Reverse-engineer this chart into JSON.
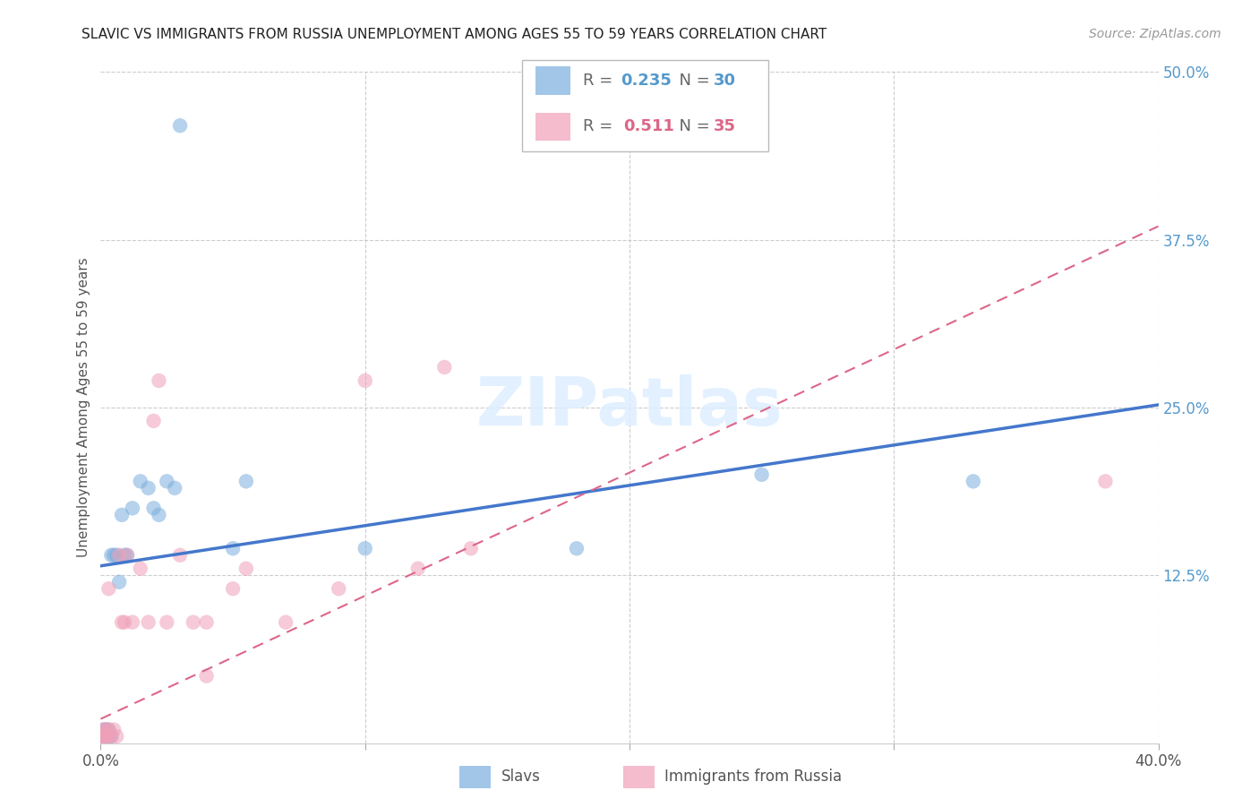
{
  "title": "SLAVIC VS IMMIGRANTS FROM RUSSIA UNEMPLOYMENT AMONG AGES 55 TO 59 YEARS CORRELATION CHART",
  "source": "Source: ZipAtlas.com",
  "ylabel": "Unemployment Among Ages 55 to 59 years",
  "xlim": [
    0.0,
    0.4
  ],
  "ylim": [
    0.0,
    0.5
  ],
  "background_color": "#ffffff",
  "grid_color": "#cccccc",
  "legend1_R": "0.235",
  "legend1_N": "30",
  "legend2_R": "0.511",
  "legend2_N": "35",
  "blue_color": "#7aaedd",
  "pink_color": "#f0a0b8",
  "blue_line_color": "#4477cc",
  "pink_line_color": "#dd6688",
  "blue_line_x": [
    0.0,
    0.4
  ],
  "blue_line_y": [
    0.132,
    0.252
  ],
  "pink_line_x": [
    0.0,
    0.4
  ],
  "pink_line_y": [
    0.018,
    0.385
  ],
  "slavs_x": [
    0.0005,
    0.001,
    0.001,
    0.0015,
    0.002,
    0.002,
    0.003,
    0.003,
    0.004,
    0.004,
    0.005,
    0.006,
    0.007,
    0.008,
    0.009,
    0.01,
    0.012,
    0.015,
    0.018,
    0.02,
    0.022,
    0.025,
    0.028,
    0.03,
    0.05,
    0.055,
    0.1,
    0.18,
    0.25,
    0.33
  ],
  "slavs_y": [
    0.005,
    0.005,
    0.01,
    0.005,
    0.005,
    0.01,
    0.005,
    0.01,
    0.005,
    0.14,
    0.14,
    0.14,
    0.12,
    0.17,
    0.14,
    0.14,
    0.175,
    0.195,
    0.19,
    0.175,
    0.17,
    0.195,
    0.19,
    0.46,
    0.145,
    0.195,
    0.145,
    0.145,
    0.2,
    0.195
  ],
  "russia_x": [
    0.0005,
    0.001,
    0.001,
    0.0015,
    0.002,
    0.002,
    0.003,
    0.003,
    0.004,
    0.005,
    0.006,
    0.007,
    0.008,
    0.009,
    0.01,
    0.012,
    0.015,
    0.018,
    0.02,
    0.022,
    0.025,
    0.03,
    0.035,
    0.04,
    0.04,
    0.05,
    0.055,
    0.07,
    0.09,
    0.1,
    0.12,
    0.13,
    0.14,
    0.38,
    0.003
  ],
  "russia_y": [
    0.005,
    0.005,
    0.01,
    0.005,
    0.005,
    0.01,
    0.005,
    0.01,
    0.005,
    0.01,
    0.005,
    0.14,
    0.09,
    0.09,
    0.14,
    0.09,
    0.13,
    0.09,
    0.24,
    0.27,
    0.09,
    0.14,
    0.09,
    0.05,
    0.09,
    0.115,
    0.13,
    0.09,
    0.115,
    0.27,
    0.13,
    0.28,
    0.145,
    0.195,
    0.115
  ]
}
